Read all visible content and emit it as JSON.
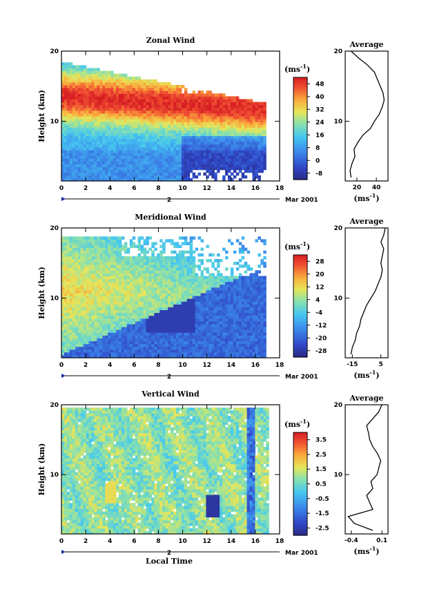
{
  "chart_data": [
    {
      "type": "heatmap",
      "title": "Zonal Wind",
      "ylabel": "Height (km)",
      "y_ticks": [
        "10",
        "20"
      ],
      "x_ticks": [
        "0",
        "2",
        "4",
        "6",
        "8",
        "10",
        "12",
        "14",
        "16",
        "18"
      ],
      "date_marker": "2",
      "date_label": "Mar 2001",
      "xlim": [
        0,
        18
      ],
      "ylim": [
        1.5,
        20
      ],
      "colorbar": {
        "unit_base": "(ms",
        "unit_exp": "-1",
        "unit_close": ")",
        "labels": [
          "48",
          "40",
          "32",
          "24",
          "16",
          "8",
          "0",
          "-8"
        ]
      },
      "profile": {
        "title": "Average",
        "x_ticks": [
          "20",
          "40"
        ],
        "xlim": [
          8,
          52
        ],
        "y_ticks": [
          "10",
          "20"
        ],
        "height": [
          2,
          3,
          4,
          5,
          6,
          7,
          8,
          9,
          10,
          11,
          12,
          13,
          14,
          15,
          16,
          17,
          18,
          19,
          20
        ],
        "value": [
          14,
          13,
          15,
          18,
          17,
          21,
          26,
          34,
          38,
          43,
          46,
          48,
          47,
          44,
          41,
          38,
          31,
          22,
          14
        ]
      }
    },
    {
      "type": "heatmap",
      "title": "Meridional Wind",
      "ylabel": "Height (km)",
      "y_ticks": [
        "10",
        "20"
      ],
      "x_ticks": [
        "0",
        "2",
        "4",
        "6",
        "8",
        "10",
        "12",
        "14",
        "16",
        "18"
      ],
      "date_marker": "2",
      "date_label": "Mar 2001",
      "xlim": [
        0,
        18
      ],
      "ylim": [
        1.5,
        20
      ],
      "colorbar": {
        "unit_base": "(ms",
        "unit_exp": "-1",
        "unit_close": ")",
        "labels": [
          "28",
          "20",
          "12",
          "4",
          "-4",
          "-12",
          "-20",
          "-28"
        ]
      },
      "profile": {
        "title": "Average",
        "x_ticks": [
          "-15",
          "5"
        ],
        "xlim": [
          -20,
          10
        ],
        "y_ticks": [
          "10",
          "20"
        ],
        "height": [
          2,
          3,
          4,
          5,
          6,
          7,
          8,
          9,
          10,
          11,
          12,
          13,
          14,
          15,
          16,
          17,
          18,
          19,
          20
        ],
        "value": [
          -16,
          -15,
          -13,
          -12,
          -10,
          -9,
          -7,
          -5,
          -2,
          1,
          3,
          5,
          6,
          5,
          6,
          7,
          5,
          7,
          8
        ]
      }
    },
    {
      "type": "heatmap",
      "title": "Vertical Wind",
      "ylabel": "Height (km)",
      "xlabel": "Local Time",
      "y_ticks": [
        "10",
        "20"
      ],
      "x_ticks": [
        "0",
        "2",
        "4",
        "6",
        "8",
        "10",
        "12",
        "14",
        "16",
        "18"
      ],
      "date_marker": "2",
      "date_label": "Mar 2001",
      "xlim": [
        0,
        18
      ],
      "ylim": [
        1.5,
        20
      ],
      "colorbar": {
        "unit_base": "(ms",
        "unit_exp": "-1",
        "unit_close": ")",
        "labels": [
          "3.5",
          "2.5",
          "1.5",
          "0.5",
          "-0.5",
          "-1.5",
          "-2.5"
        ]
      },
      "profile": {
        "title": "Average",
        "x_ticks": [
          "-0.4",
          "0.1"
        ],
        "xlim": [
          -0.5,
          0.2
        ],
        "y_ticks": [
          "10",
          "20"
        ],
        "height": [
          2,
          3,
          4,
          5,
          6,
          7,
          8,
          9,
          10,
          11,
          12,
          13,
          14,
          15,
          16,
          17,
          18,
          19,
          20
        ],
        "value": [
          -0.05,
          -0.35,
          -0.45,
          -0.05,
          -0.1,
          -0.15,
          -0.05,
          -0.08,
          0.02,
          0.05,
          0.08,
          0.03,
          -0.05,
          -0.1,
          -0.12,
          -0.15,
          -0.05,
          0.05,
          0.1
        ]
      }
    }
  ]
}
